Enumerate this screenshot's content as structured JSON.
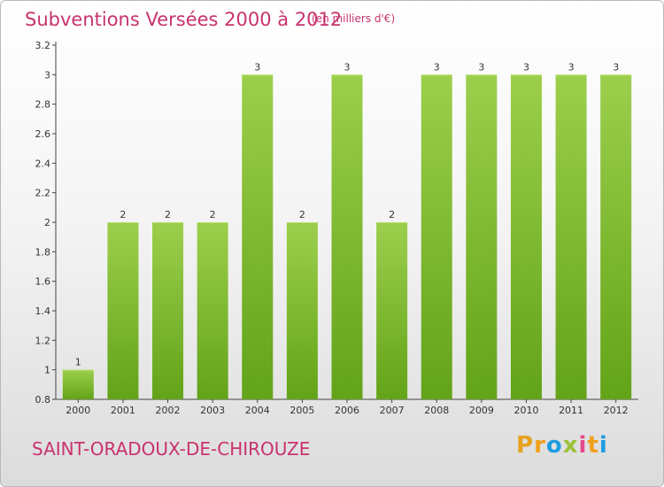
{
  "title": "Subventions Versées 2000 à 2012",
  "unit": "(en milliers d'€)",
  "commune": "SAINT-ORADOUX-DE-CHIROUZE",
  "brand": {
    "letters": [
      "P",
      "r",
      "o",
      "x",
      "i",
      "t",
      "i"
    ],
    "colors": [
      "#e8a11f",
      "#f0a01c",
      "#1e9de0",
      "#9bc23a",
      "#e84a8c",
      "#f0a01c",
      "#1e9de0"
    ]
  },
  "colors": {
    "accent": "#c8336e",
    "bar_light": "#9ccf4c",
    "bar_dark": "#62a319"
  },
  "chart_data": {
    "type": "bar",
    "categories": [
      "2000",
      "2001",
      "2002",
      "2003",
      "2004",
      "2005",
      "2006",
      "2007",
      "2008",
      "2009",
      "2010",
      "2011",
      "2012"
    ],
    "values": [
      1,
      2,
      2,
      2,
      3,
      2,
      3,
      2,
      3,
      3,
      3,
      3,
      3
    ],
    "data_labels": [
      "1",
      "2",
      "2",
      "2",
      "3",
      "2",
      "3",
      "2",
      "3",
      "3",
      "3",
      "3",
      "3"
    ],
    "title": "Subventions Versées 2000 à 2012",
    "xlabel": "",
    "ylabel": "",
    "ylim": [
      0.8,
      3.2
    ],
    "yticks": [
      0.8,
      1,
      1.2,
      1.4,
      1.6,
      1.8,
      2,
      2.2,
      2.4,
      2.6,
      2.8,
      3,
      3.2
    ],
    "ytick_labels": [
      "0.8",
      "1",
      "1.2",
      "1.4",
      "1.6",
      "1.8",
      "2",
      "2.2",
      "2.4",
      "2.6",
      "2.8",
      "3",
      "3.2"
    ],
    "grid": false,
    "legend": "none"
  }
}
